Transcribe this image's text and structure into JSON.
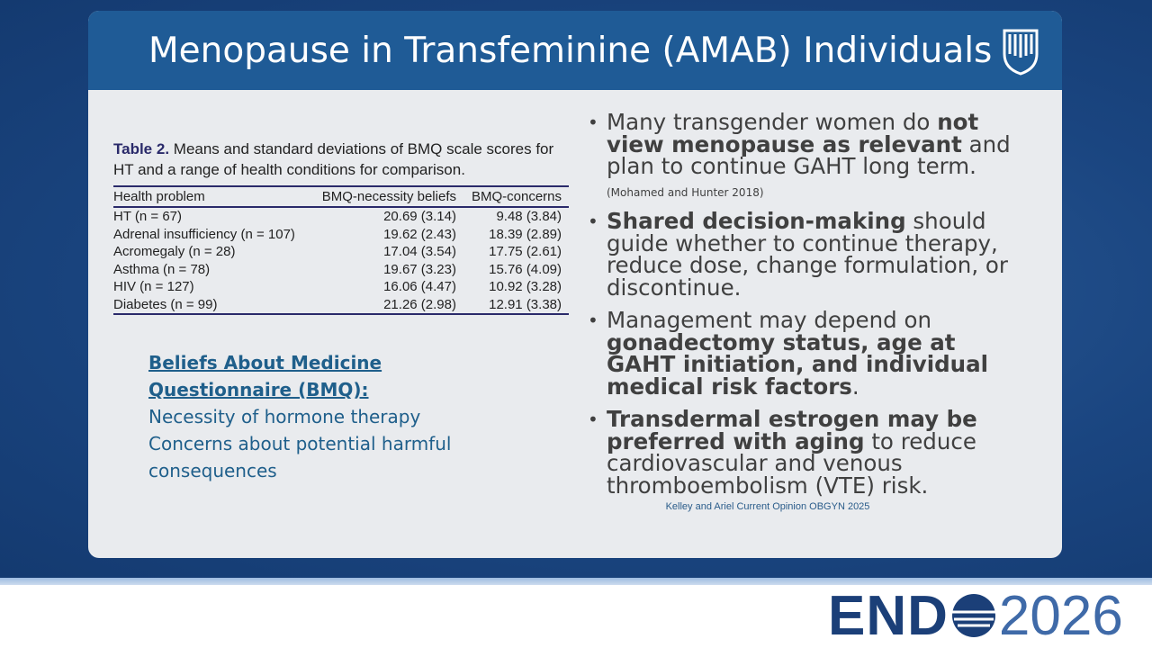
{
  "slide": {
    "title": "Menopause in Transfeminine (AMAB) Individuals"
  },
  "table": {
    "caption_label": "Table 2.",
    "caption": "Means and standard deviations of BMQ scale scores for HT and a range of health conditions for comparison.",
    "headers": [
      "Health problem",
      "BMQ-necessity beliefs",
      "BMQ-concerns"
    ],
    "rows": [
      [
        "HT (n = 67)",
        "20.69 (3.14)",
        "9.48 (3.84)"
      ],
      [
        "Adrenal insufficiency (n = 107)",
        "19.62 (2.43)",
        "18.39 (2.89)"
      ],
      [
        "Acromegaly (n = 28)",
        "17.04 (3.54)",
        "17.75 (2.61)"
      ],
      [
        "Asthma (n = 78)",
        "19.67 (3.23)",
        "15.76 (4.09)"
      ],
      [
        "HIV (n = 127)",
        "16.06 (4.47)",
        "10.92 (3.28)"
      ],
      [
        "Diabetes (n = 99)",
        "21.26 (2.98)",
        "12.91 (3.38)"
      ]
    ]
  },
  "bmq": {
    "heading": "Beliefs About Medicine Questionnaire (BMQ):",
    "items": [
      "Necessity of hormone therapy",
      "Concerns about potential harmful consequences"
    ]
  },
  "bullets": [
    {
      "runs": [
        {
          "text": "Many transgender women do ",
          "style": "normal"
        },
        {
          "text": "not view menopause as relevant",
          "style": "bold"
        },
        {
          "text": " and plan to continue GAHT long term. ",
          "style": "normal"
        },
        {
          "text": "(Mohamed and Hunter 2018)",
          "style": "small"
        }
      ]
    },
    {
      "runs": [
        {
          "text": "Shared decision-making",
          "style": "bold"
        },
        {
          "text": " should guide whether to continue therapy, reduce dose, change formulation, or discontinue.",
          "style": "normal"
        }
      ]
    },
    {
      "runs": [
        {
          "text": "Management may depend on ",
          "style": "normal"
        },
        {
          "text": "gonadectomy status, age at GAHT initiation, and individual medical risk factors",
          "style": "bold"
        },
        {
          "text": ".",
          "style": "normal"
        }
      ]
    },
    {
      "runs": [
        {
          "text": "Transdermal estrogen may be preferred with aging",
          "style": "bold"
        },
        {
          "text": " to reduce cardiovascular and venous thromboembolism (VTE) risk.",
          "style": "normal"
        }
      ]
    }
  ],
  "citation": "Kelley and Ariel Current Opinion OBGYN 2025",
  "footer": {
    "logo_bold": "END",
    "logo_light": "2026"
  }
}
